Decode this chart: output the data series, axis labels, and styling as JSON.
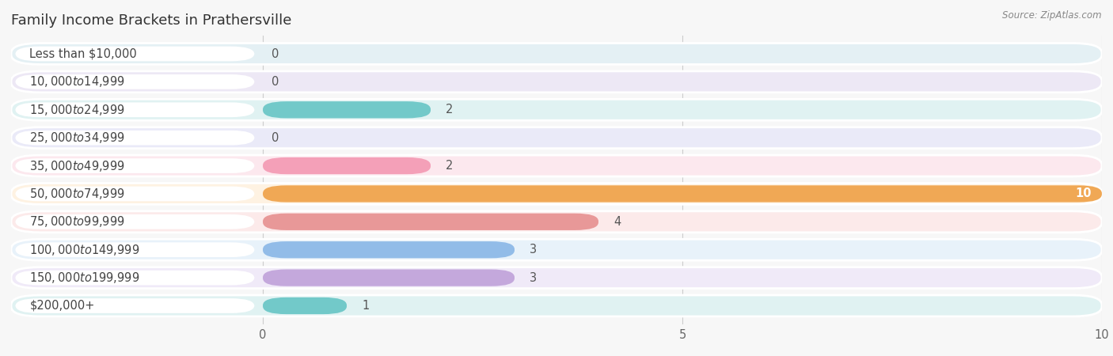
{
  "title": "Family Income Brackets in Prathersville",
  "source": "Source: ZipAtlas.com",
  "categories": [
    "Less than $10,000",
    "$10,000 to $14,999",
    "$15,000 to $24,999",
    "$25,000 to $34,999",
    "$35,000 to $49,999",
    "$50,000 to $74,999",
    "$75,000 to $99,999",
    "$100,000 to $149,999",
    "$150,000 to $199,999",
    "$200,000+"
  ],
  "values": [
    0,
    0,
    2,
    0,
    2,
    10,
    4,
    3,
    3,
    1
  ],
  "bar_colors": [
    "#8ecfcf",
    "#c9a8d4",
    "#72c9c9",
    "#aaaade",
    "#f4a0b8",
    "#f0a855",
    "#e89898",
    "#92bce8",
    "#c4a8dc",
    "#72c9c9"
  ],
  "bar_bg_colors": [
    "#e4f0f4",
    "#ede8f5",
    "#e0f2f2",
    "#eaeaf8",
    "#fce8ee",
    "#fef2e2",
    "#fceaea",
    "#e8f2fa",
    "#f0eaf8",
    "#e0f2f2"
  ],
  "xlim": [
    0,
    10
  ],
  "xticks": [
    0,
    5,
    10
  ],
  "bg_color": "#f7f7f7",
  "title_fontsize": 13,
  "label_fontsize": 10.5,
  "value_fontsize": 10.5
}
